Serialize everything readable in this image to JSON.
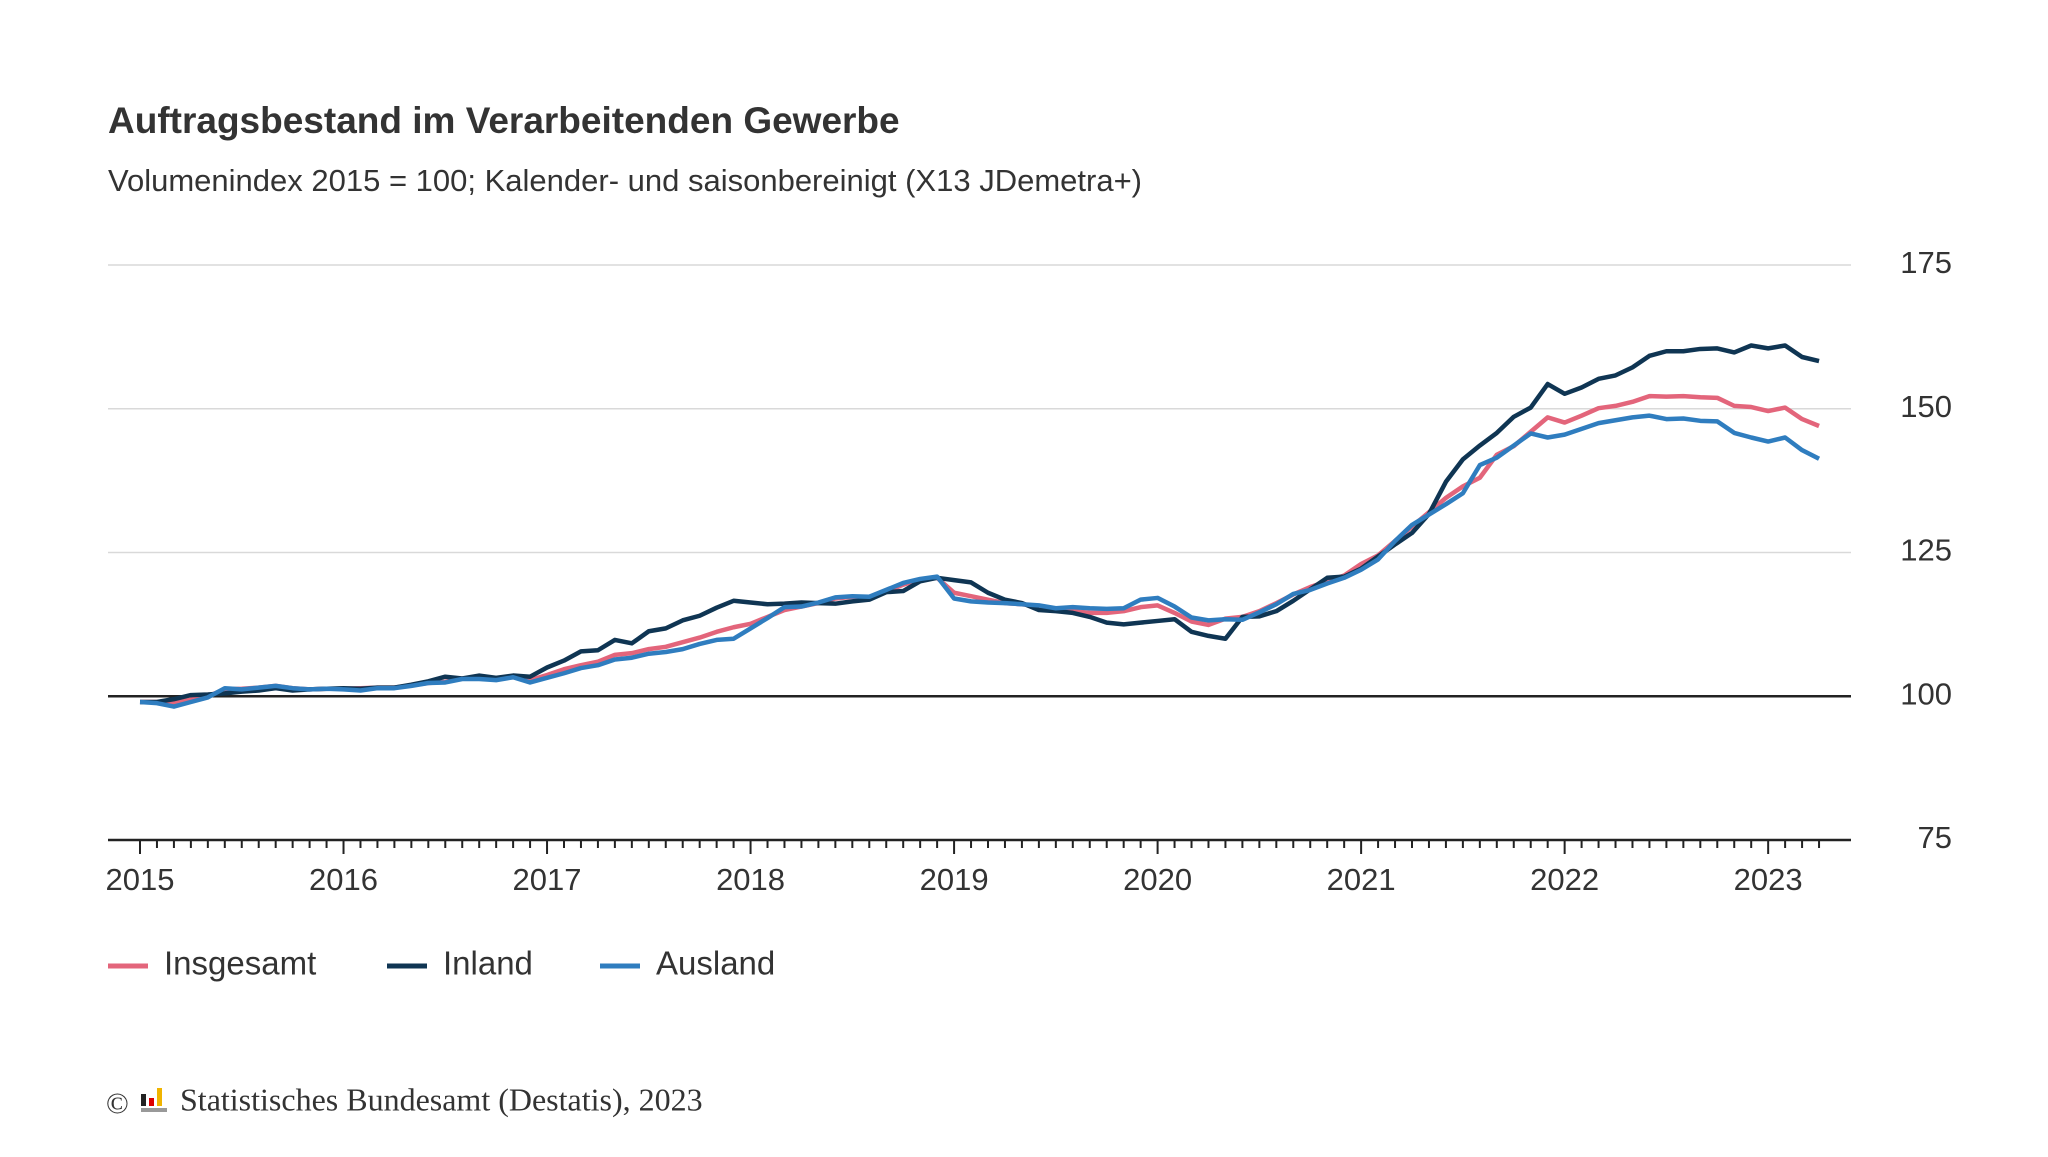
{
  "chart_data": {
    "type": "line",
    "title": "Auftragsbestand im Verarbeitenden Gewerbe",
    "subtitle": "Volumenindex 2015 = 100; Kalender- und saisonbereinigt (X13 JDemetra+)",
    "categories": [
      "2015",
      null,
      null,
      null,
      null,
      null,
      null,
      null,
      null,
      null,
      null,
      null,
      "2016",
      null,
      null,
      null,
      null,
      null,
      null,
      null,
      null,
      null,
      null,
      null,
      "2017",
      null,
      null,
      null,
      null,
      null,
      null,
      null,
      null,
      null,
      null,
      null,
      "2018",
      null,
      null,
      null,
      null,
      null,
      null,
      null,
      null,
      null,
      null,
      null,
      "2019",
      null,
      null,
      null,
      null,
      null,
      null,
      null,
      null,
      null,
      null,
      null,
      "2020",
      null,
      null,
      null,
      null,
      null,
      null,
      null,
      null,
      null,
      null,
      null,
      "2021",
      null,
      null,
      null,
      null,
      null,
      null,
      null,
      null,
      null,
      null,
      null,
      "2022",
      null,
      null,
      null,
      null,
      null,
      null,
      null,
      null,
      null,
      null,
      null,
      "2023",
      null,
      null,
      null
    ],
    "series": [
      {
        "name": "Insgesamt",
        "color": "#e3657b",
        "values": [
          99,
          99,
          98.8,
          99.4,
          100,
          101.2,
          101.3,
          101.5,
          101.8,
          101.4,
          101.2,
          101.3,
          101.3,
          101.4,
          101.5,
          101.5,
          101.9,
          102.3,
          102.5,
          103.1,
          103.2,
          103.1,
          103.4,
          102.8,
          103.7,
          104.7,
          105.4,
          106,
          107.2,
          107.5,
          108.2,
          108.6,
          109.4,
          110.2,
          111.2,
          112,
          112.6,
          113.8,
          115,
          115.6,
          116.2,
          117,
          117.3,
          117.2,
          118.2,
          119.4,
          120.3,
          120.6,
          118,
          117.4,
          116.8,
          116.2,
          116,
          115.7,
          115,
          114.8,
          114.5,
          114.5,
          114.8,
          115.5,
          115.8,
          114.5,
          113,
          112.4,
          113.5,
          113.8,
          114.8,
          116.2,
          117.7,
          119,
          120,
          121,
          123,
          124.5,
          127,
          129.5,
          132,
          134.5,
          136.5,
          138,
          142,
          143.5,
          146,
          148.5,
          147.6,
          148.8,
          150.1,
          150.5,
          151.2,
          152.2,
          152.1,
          152.2,
          152,
          151.9,
          150.5,
          150.3,
          149.6,
          150.2,
          148.2,
          147
        ]
      },
      {
        "name": "Inland",
        "color": "#0f3553",
        "values": [
          99,
          99,
          99.5,
          100.2,
          100.3,
          100.5,
          100.8,
          101,
          101.4,
          101,
          101.2,
          101.3,
          101.4,
          101.3,
          101.5,
          101.5,
          102,
          102.6,
          103.4,
          103.1,
          103.6,
          103.2,
          103.6,
          103.4,
          105,
          106.2,
          107.8,
          108,
          109.8,
          109.2,
          111.3,
          111.8,
          113.2,
          114,
          115.4,
          116.6,
          116.3,
          116,
          116.1,
          116.3,
          116.2,
          116.1,
          116.5,
          116.8,
          118.1,
          118.3,
          120,
          120.6,
          120.2,
          119.8,
          118,
          116.8,
          116.2,
          115,
          114.8,
          114.5,
          113.8,
          112.8,
          112.5,
          112.8,
          113.1,
          113.4,
          111.2,
          110.5,
          110,
          113.8,
          113.9,
          114.8,
          116.6,
          118.6,
          120.6,
          120.8,
          122.2,
          124.3,
          126.4,
          128.4,
          131.7,
          137.3,
          141.2,
          143.6,
          145.8,
          148.6,
          150.2,
          154.3,
          152.6,
          153.7,
          155.2,
          155.8,
          157.2,
          159.2,
          160,
          160,
          160.4,
          160.5,
          159.8,
          161,
          160.5,
          161,
          159,
          158.3
        ]
      },
      {
        "name": "Ausland",
        "color": "#2f7dbf",
        "values": [
          99,
          98.8,
          98.2,
          99,
          99.8,
          101.4,
          101.2,
          101.5,
          101.8,
          101.4,
          101.2,
          101.3,
          101.2,
          101,
          101.4,
          101.4,
          101.8,
          102.3,
          102.4,
          103,
          103,
          102.8,
          103.3,
          102.4,
          103.2,
          104,
          104.9,
          105.4,
          106.4,
          106.7,
          107.4,
          107.7,
          108.2,
          109.1,
          109.8,
          110,
          111.8,
          113.6,
          115.5,
          115.6,
          116.3,
          117.2,
          117.4,
          117.3,
          118.5,
          119.7,
          120.4,
          120.8,
          117,
          116.5,
          116.3,
          116.2,
          116,
          115.8,
          115.3,
          115.5,
          115.3,
          115.2,
          115.3,
          116.8,
          117.1,
          115.6,
          113.7,
          113.2,
          113.4,
          113.3,
          114.6,
          116,
          117.8,
          118.5,
          119.6,
          120.6,
          122,
          123.8,
          127,
          129.8,
          131.6,
          133.4,
          135.3,
          140.2,
          141.5,
          143.6,
          145.7,
          145,
          145.5,
          146.5,
          147.5,
          148,
          148.5,
          148.8,
          148.2,
          148.3,
          147.9,
          147.8,
          145.8,
          145,
          144.3,
          145,
          142.8,
          141.3
        ]
      }
    ],
    "ylim": [
      75,
      175
    ],
    "yticks": [
      75,
      100,
      125,
      150,
      175
    ],
    "grid": true,
    "reference_line": 100,
    "legend": "bottom",
    "footer": "Statistisches Bundesamt (Destatis), 2023"
  }
}
